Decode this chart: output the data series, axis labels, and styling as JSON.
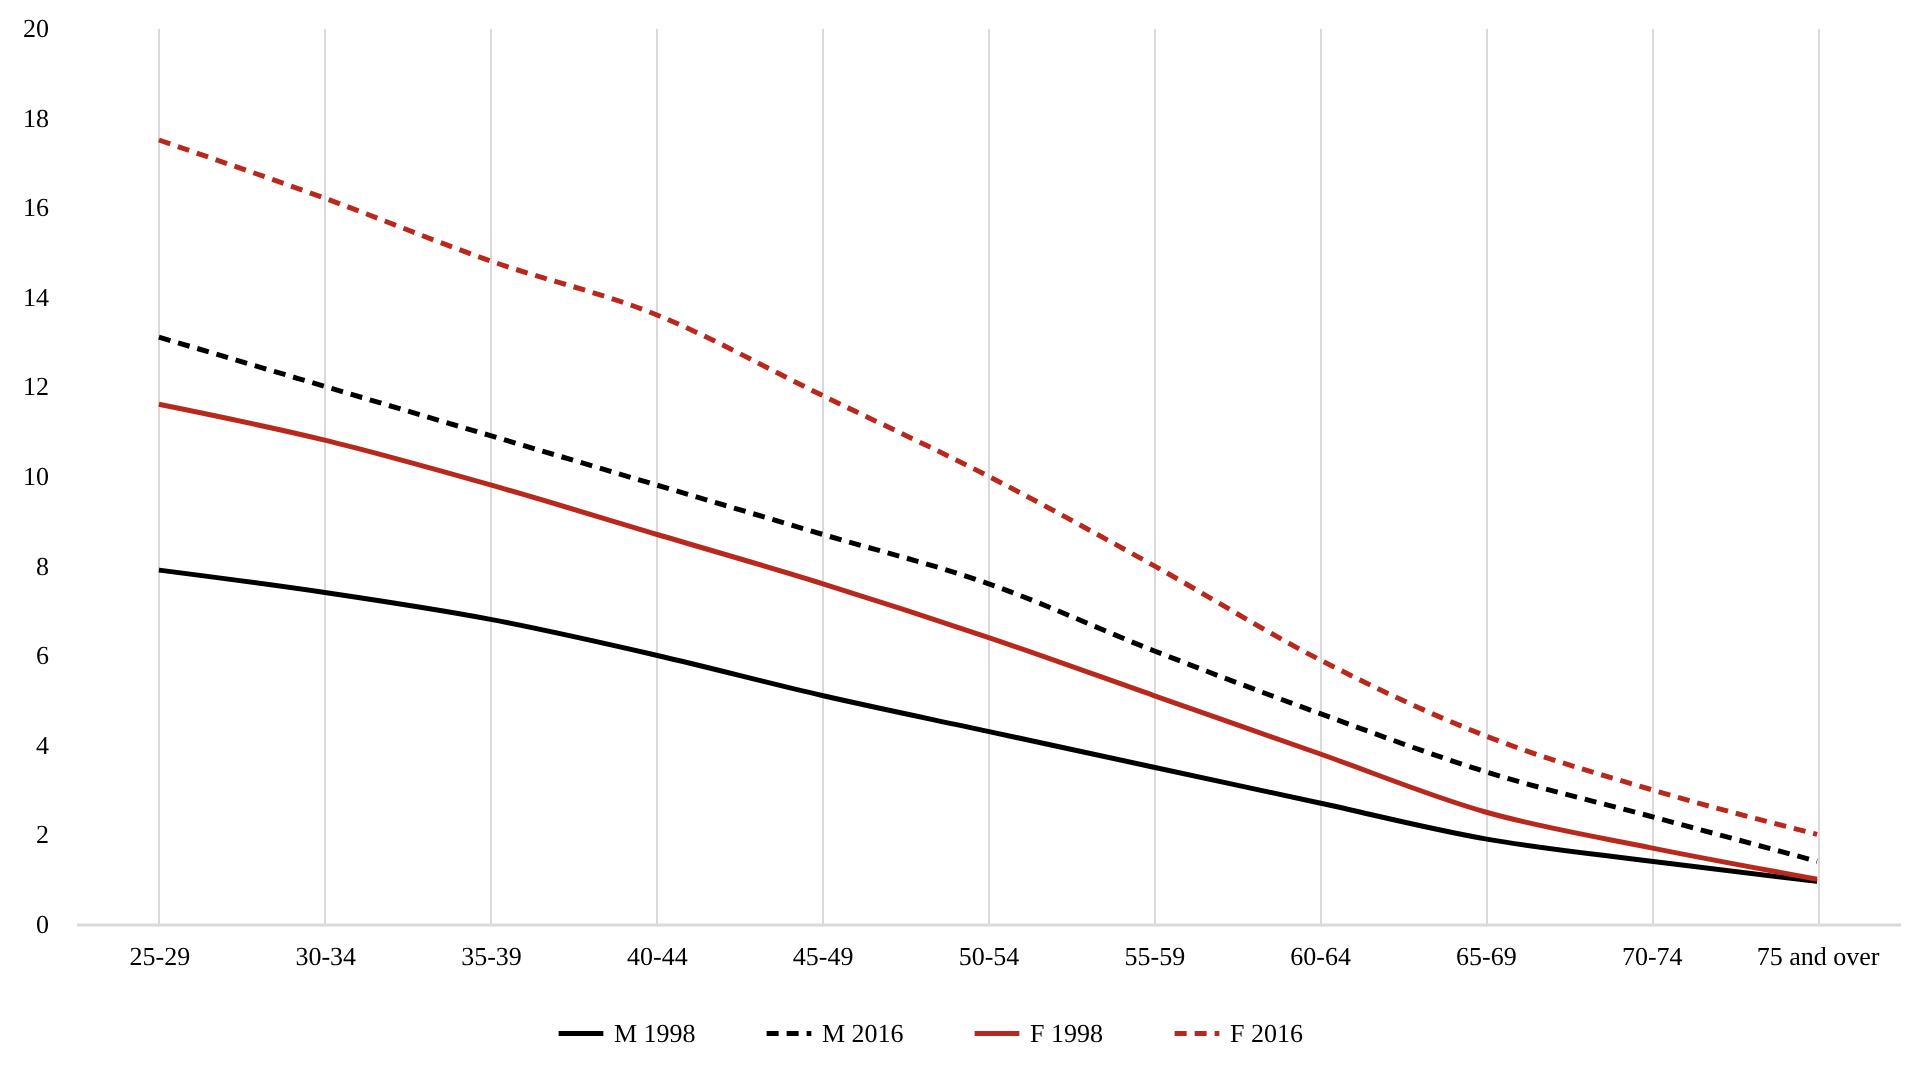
{
  "chart_data": {
    "type": "line",
    "categories": [
      "25-29",
      "30-34",
      "35-39",
      "40-44",
      "45-49",
      "50-54",
      "55-59",
      "60-64",
      "65-69",
      "70-74",
      "75 and over"
    ],
    "series": [
      {
        "name": "M 1998",
        "color": "#000000",
        "line_style": "solid",
        "values": [
          7.9,
          7.4,
          6.8,
          6.0,
          5.1,
          4.3,
          3.5,
          2.7,
          1.9,
          1.4,
          0.95
        ]
      },
      {
        "name": "M 2016",
        "color": "#000000",
        "line_style": "dashed",
        "values": [
          13.1,
          12.0,
          10.9,
          9.8,
          8.7,
          7.6,
          6.1,
          4.7,
          3.4,
          2.4,
          1.4
        ]
      },
      {
        "name": "F 1998",
        "color": "#b8281c",
        "line_style": "solid",
        "values": [
          11.6,
          10.8,
          9.8,
          8.7,
          7.6,
          6.4,
          5.1,
          3.8,
          2.5,
          1.7,
          1.0
        ]
      },
      {
        "name": "F 2016",
        "color": "#b8281c",
        "line_style": "dashed",
        "values": [
          17.5,
          16.2,
          14.8,
          13.6,
          11.8,
          10.0,
          8.0,
          5.9,
          4.2,
          3.0,
          2.0
        ]
      }
    ],
    "ylim": [
      0,
      20
    ],
    "yticks": [
      0,
      2,
      4,
      6,
      8,
      10,
      12,
      14,
      16,
      18,
      20
    ],
    "grid": "x",
    "legend": "bottom",
    "marker": "none"
  }
}
